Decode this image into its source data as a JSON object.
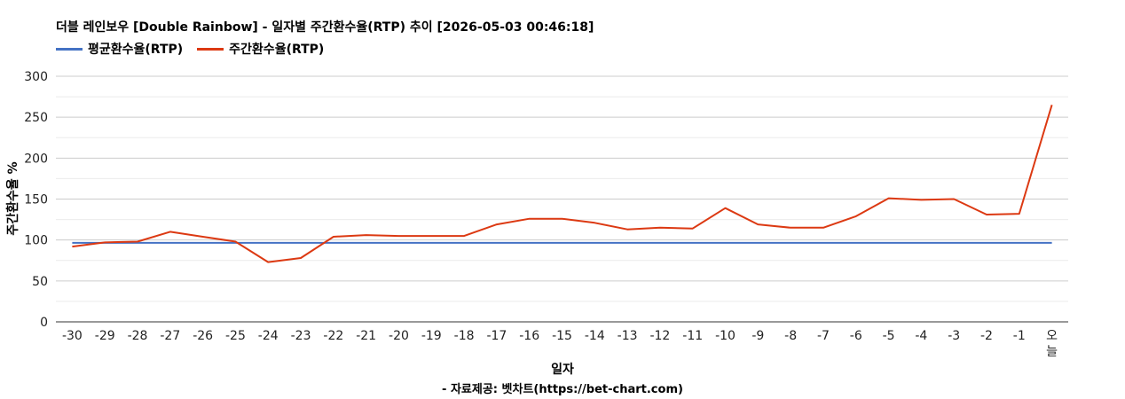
{
  "chart_data": {
    "type": "line",
    "title": "더블 레인보우 [Double Rainbow] - 일자별 주간환수율(RTP) 추이 [2026-05-03 00:46:18]",
    "xlabel": "일자",
    "ylabel": "주간환수율 %",
    "footer": "- 자료제공: 벳차트(https://bet-chart.com)",
    "ylim": [
      0,
      300
    ],
    "yticks": [
      "0",
      "50",
      "100",
      "150",
      "200",
      "250",
      "300"
    ],
    "grid": true,
    "legend_position": "top-left",
    "categories": [
      "-30",
      "-29",
      "-28",
      "-27",
      "-26",
      "-25",
      "-24",
      "-23",
      "-22",
      "-21",
      "-20",
      "-19",
      "-18",
      "-17",
      "-16",
      "-15",
      "-14",
      "-13",
      "-12",
      "-11",
      "-10",
      "-9",
      "-8",
      "-7",
      "-6",
      "-5",
      "-4",
      "-3",
      "-2",
      "-1",
      "오늘"
    ],
    "series": [
      {
        "name": "평균환수율(RTP)",
        "color": "#4472c4",
        "values": [
          96.5,
          96.5,
          96.5,
          96.5,
          96.5,
          96.5,
          96.5,
          96.5,
          96.5,
          96.5,
          96.5,
          96.5,
          96.5,
          96.5,
          96.5,
          96.5,
          96.5,
          96.5,
          96.5,
          96.5,
          96.5,
          96.5,
          96.5,
          96.5,
          96.5,
          96.5,
          96.5,
          96.5,
          96.5,
          96.5,
          96.5
        ]
      },
      {
        "name": "주간환수율(RTP)",
        "color": "#dc3912",
        "values": [
          92,
          97,
          98,
          110,
          104,
          98,
          73,
          78,
          104,
          106,
          105,
          105,
          105,
          119,
          126,
          126,
          121,
          113,
          115,
          114,
          139,
          119,
          115,
          115,
          129,
          151,
          149,
          150,
          131,
          132,
          265
        ]
      }
    ]
  }
}
